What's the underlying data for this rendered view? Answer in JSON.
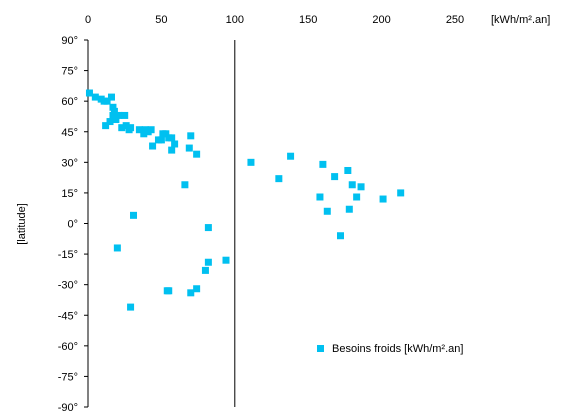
{
  "chart_data": {
    "type": "scatter",
    "title": "",
    "xlabel": "[kWh/m².an]",
    "ylabel": "[latitude]",
    "xlim": [
      0,
      250
    ],
    "ylim": [
      -90,
      90
    ],
    "x_ticks": [
      "0",
      "50",
      "100",
      "150",
      "200",
      "250"
    ],
    "y_ticks": [
      "90°",
      "75°",
      "60°",
      "45°",
      "30°",
      "15°",
      "0°",
      "-15°",
      "-30°",
      "-45°",
      "-60°",
      "-75°",
      "-90°"
    ],
    "x_axis_position": "top",
    "grid": false,
    "legend_position": "bottom-right",
    "color": "#00c0f0",
    "series": [
      {
        "name": "Besoins froids [kWh/m².an]",
        "points": [
          [
            1,
            64
          ],
          [
            5,
            62
          ],
          [
            9,
            61
          ],
          [
            11,
            60
          ],
          [
            13,
            60
          ],
          [
            16,
            62
          ],
          [
            17,
            57
          ],
          [
            18,
            55
          ],
          [
            12,
            48
          ],
          [
            15,
            50
          ],
          [
            17,
            53
          ],
          [
            19,
            51
          ],
          [
            21,
            53
          ],
          [
            25,
            53
          ],
          [
            23,
            47
          ],
          [
            26,
            48
          ],
          [
            28,
            46
          ],
          [
            29,
            47
          ],
          [
            35,
            46
          ],
          [
            38,
            44
          ],
          [
            39,
            46
          ],
          [
            41,
            45
          ],
          [
            43,
            46
          ],
          [
            48,
            41
          ],
          [
            50,
            41
          ],
          [
            51,
            44
          ],
          [
            53,
            44
          ],
          [
            55,
            42
          ],
          [
            44,
            38
          ],
          [
            57,
            42
          ],
          [
            59,
            39
          ],
          [
            57,
            36
          ],
          [
            70,
            43
          ],
          [
            69,
            37
          ],
          [
            74,
            34
          ],
          [
            66,
            19
          ],
          [
            111,
            30
          ],
          [
            130,
            22
          ],
          [
            138,
            33
          ],
          [
            158,
            13
          ],
          [
            160,
            29
          ],
          [
            163,
            6
          ],
          [
            168,
            23
          ],
          [
            172,
            -6
          ],
          [
            177,
            26
          ],
          [
            178,
            7
          ],
          [
            180,
            19
          ],
          [
            183,
            13
          ],
          [
            186,
            18
          ],
          [
            201,
            12
          ],
          [
            213,
            15
          ],
          [
            31,
            4
          ],
          [
            82,
            -2
          ],
          [
            20,
            -12
          ],
          [
            80,
            -23
          ],
          [
            82,
            -19
          ],
          [
            94,
            -18
          ],
          [
            55,
            -33
          ],
          [
            54,
            -33
          ],
          [
            70,
            -34
          ],
          [
            74,
            -32
          ],
          [
            29,
            -41
          ]
        ]
      }
    ]
  }
}
